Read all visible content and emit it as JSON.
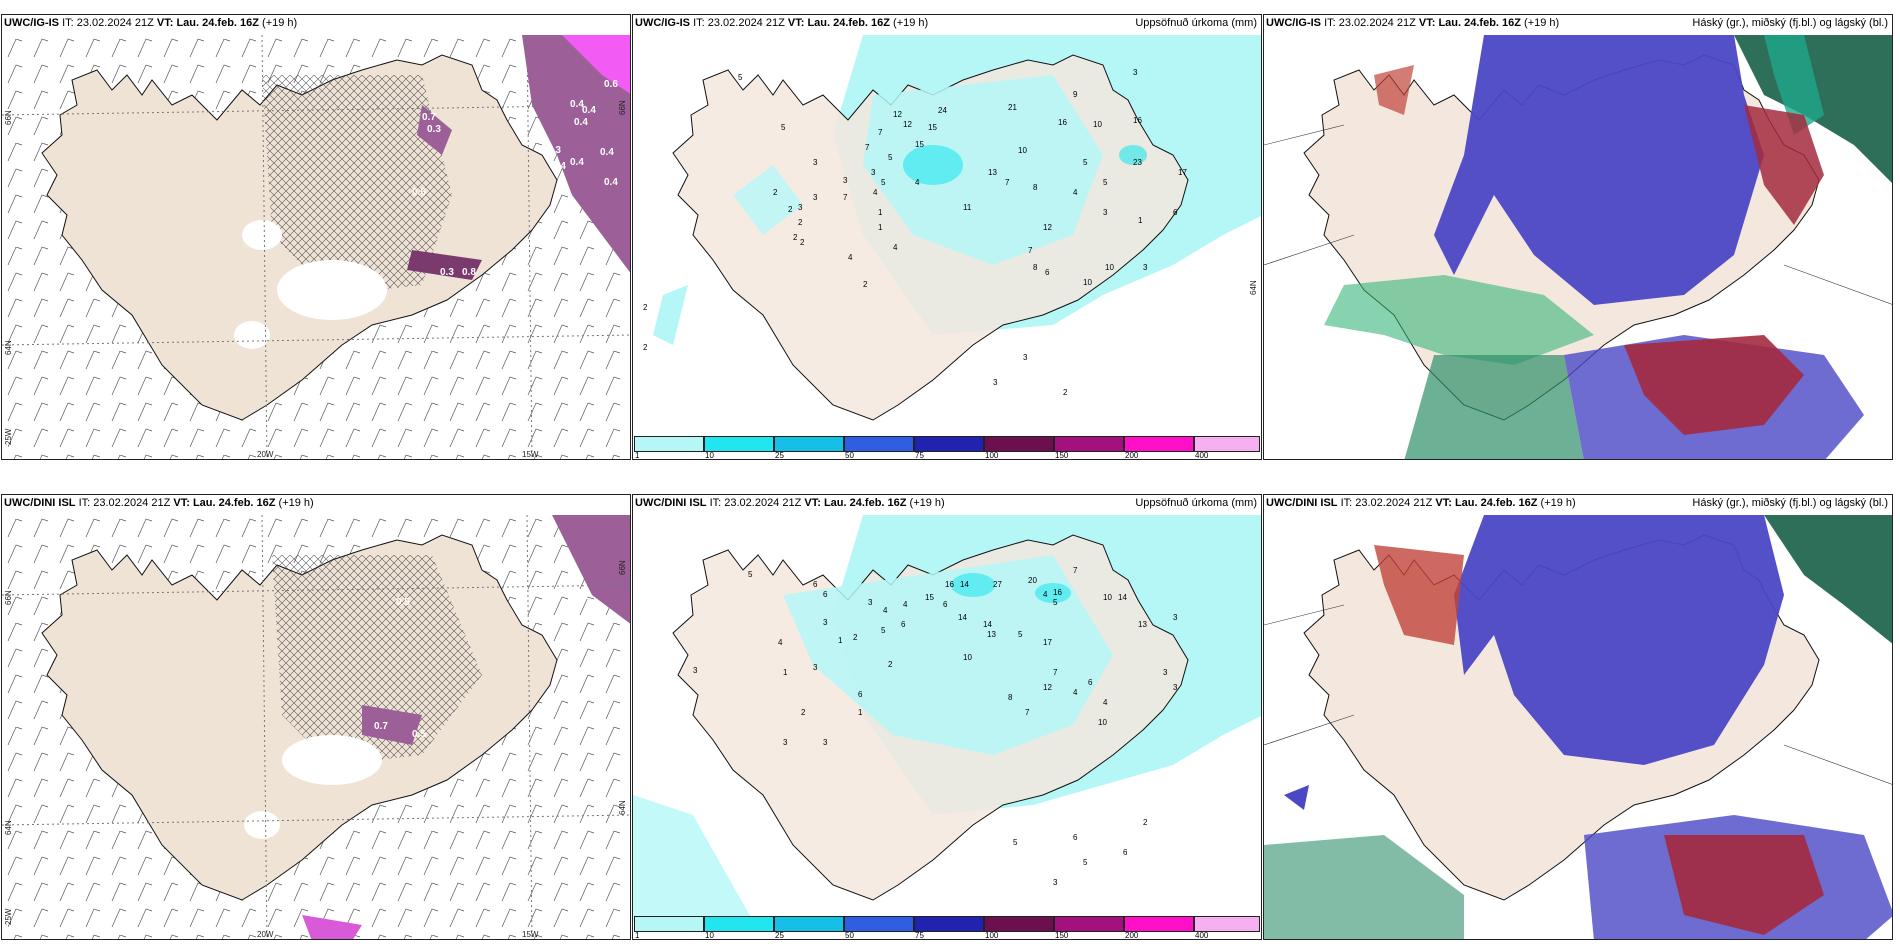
{
  "rows": [
    {
      "model": "UWC/IG-IS",
      "it_label": "IT:",
      "it_value": "23.02.2024 21Z",
      "vt_label": "VT:",
      "vt_value": "Lau. 24.feb. 16Z",
      "lead": "(+19 h)"
    },
    {
      "model": "UWC/DINI ISL",
      "it_label": "IT:",
      "it_value": "23.02.2024 21Z",
      "vt_label": "VT:",
      "vt_value": "Lau. 24.feb. 16Z",
      "lead": "(+19 h)"
    }
  ],
  "panel_titles": {
    "precip": "Uppsöfnuð úrkoma (mm)",
    "cloud": "Háský (gr.), miðský (fj.bl.) og lágský (bl.)"
  },
  "axis_labels": {
    "lon_20w": "20W",
    "lon_15w": "15W",
    "lat_66n": "66N",
    "lat_64n": "64N",
    "lat_25w": "25W"
  },
  "colorbar": {
    "ticks": [
      "1",
      "10",
      "25",
      "50",
      "75",
      "100",
      "150",
      "200",
      "400"
    ],
    "colors": [
      "#b5f7f7",
      "#22e6ef",
      "#16bfe6",
      "#2f5fe0",
      "#2222b0",
      "#6b0f4f",
      "#a3117f",
      "#ff10c8",
      "#f5b0f0"
    ]
  },
  "precip_values_top": [
    "5",
    "12",
    "24",
    "21",
    "9",
    "3",
    "16",
    "10",
    "15",
    "12",
    "15",
    "16",
    "7",
    "5",
    "7",
    "5",
    "3",
    "3",
    "4",
    "5",
    "3",
    "10",
    "13",
    "7",
    "8",
    "5",
    "23",
    "17",
    "2",
    "3",
    "7",
    "4",
    "3",
    "2",
    "1",
    "2",
    "11",
    "5",
    "4",
    "3",
    "6",
    "2",
    "2",
    "1",
    "12",
    "1",
    "4",
    "4",
    "10",
    "8",
    "7",
    "6",
    "10",
    "3",
    "2",
    "3",
    "2",
    "3",
    "2",
    "2"
  ],
  "precip_values_bottom": [
    "5",
    "6",
    "6",
    "3",
    "4",
    "4",
    "6",
    "16",
    "14",
    "27",
    "20",
    "7",
    "10",
    "14",
    "5",
    "4",
    "15",
    "14",
    "16",
    "3",
    "1",
    "5",
    "6",
    "2",
    "14",
    "5",
    "13",
    "17",
    "13",
    "3",
    "4",
    "10",
    "7",
    "6",
    "1",
    "3",
    "2",
    "3",
    "12",
    "4",
    "7",
    "8",
    "6",
    "10",
    "4",
    "3",
    "1",
    "2",
    "5",
    "6",
    "5",
    "6",
    "2",
    "3",
    "3",
    "3",
    "3"
  ],
  "aerosol_values_top": [
    "0.6",
    "0.4",
    "0.4",
    "0.4",
    "0.4",
    "0.4",
    "0.3",
    "0.4",
    "0.4",
    "0.7",
    "0.3",
    "0.6",
    "0.8",
    "0.3"
  ],
  "aerosol_values_bottom": [
    "0.2",
    "0.5",
    "0.7",
    "0.5",
    "0.3"
  ]
}
